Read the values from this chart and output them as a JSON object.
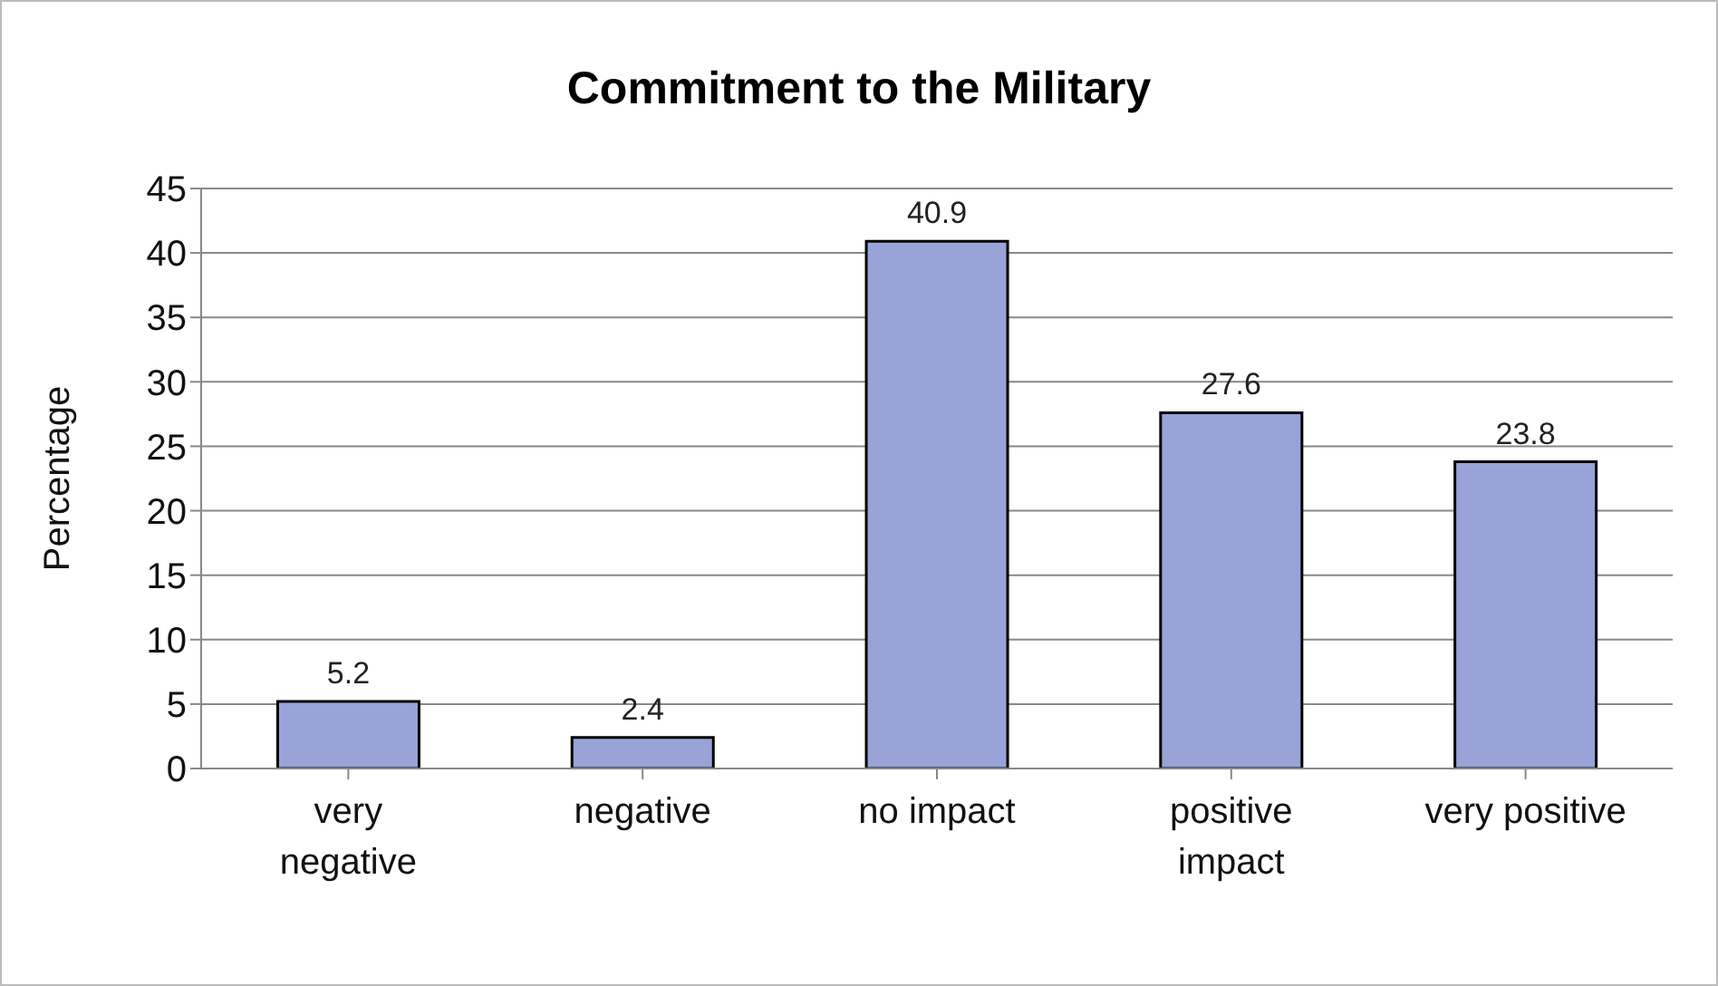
{
  "chart_data": {
    "type": "bar",
    "title": "Commitment to the Military",
    "ylabel": "Percentage",
    "categories": [
      "very negative",
      "negative",
      "no impact",
      "positive impact",
      "very positive"
    ],
    "values": [
      5.2,
      2.4,
      40.9,
      27.6,
      23.8
    ],
    "color": "#99a3d7",
    "ylim": [
      0,
      45
    ],
    "yticks": [
      0,
      5,
      10,
      15,
      20,
      25,
      30,
      35,
      40,
      45
    ],
    "grid": "y",
    "data_labels": true
  }
}
